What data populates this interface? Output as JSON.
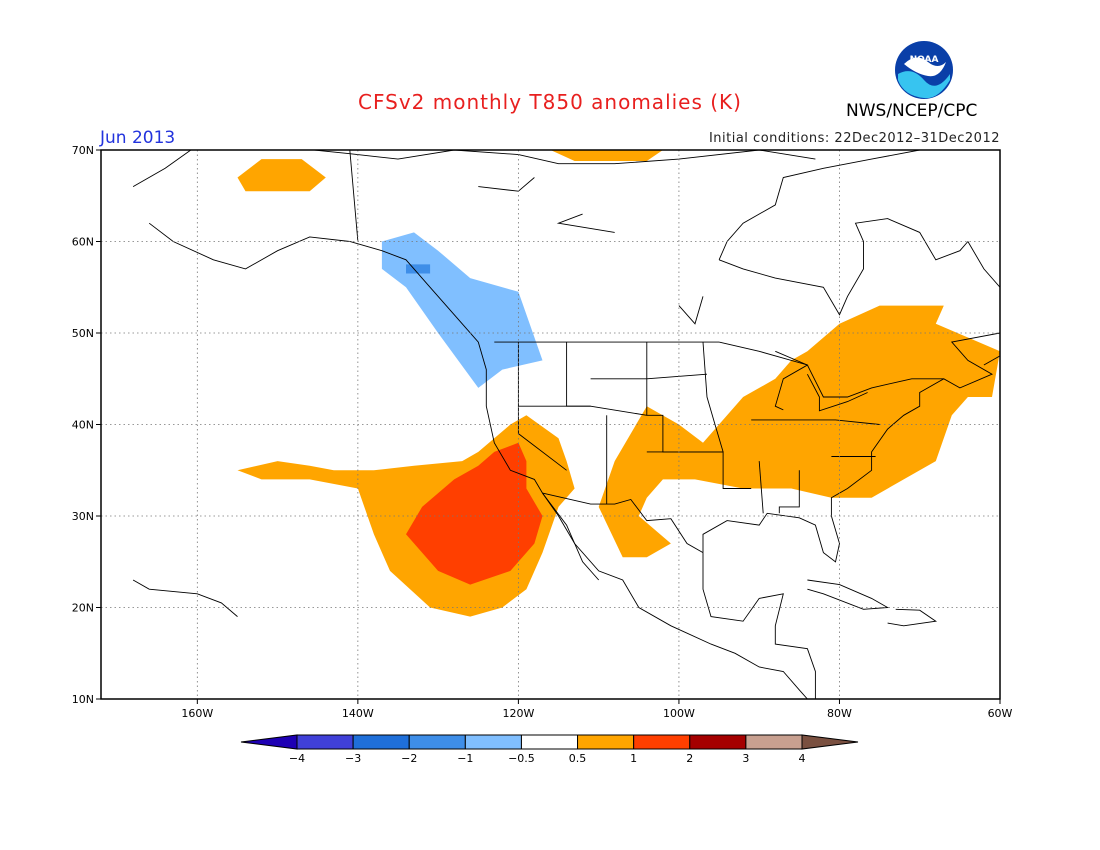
{
  "title": "CFSv2 monthly T850 anomalies (K)",
  "month": "Jun 2013",
  "initial_conditions": "Initial conditions: 22Dec2012–31Dec2012",
  "organization": "NWS/NCEP/CPC",
  "logo_text": "NOAA",
  "map": {
    "lon_range": [
      -172,
      -60
    ],
    "lat_range": [
      10,
      70
    ],
    "lon_ticks": [
      {
        "value": -160,
        "label": "160W"
      },
      {
        "value": -140,
        "label": "140W"
      },
      {
        "value": -120,
        "label": "120W"
      },
      {
        "value": -100,
        "label": "100W"
      },
      {
        "value": -80,
        "label": "80W"
      },
      {
        "value": -60,
        "label": "60W"
      }
    ],
    "lat_ticks": [
      {
        "value": 10,
        "label": "10N"
      },
      {
        "value": 20,
        "label": "20N"
      },
      {
        "value": 30,
        "label": "30N"
      },
      {
        "value": 40,
        "label": "40N"
      },
      {
        "value": 50,
        "label": "50N"
      },
      {
        "value": 60,
        "label": "60N"
      },
      {
        "value": 70,
        "label": "70N"
      }
    ],
    "grid": true,
    "regions": [
      {
        "name": "alaska-north-warm",
        "color": "#ffa500",
        "points": [
          [
            -155,
            67
          ],
          [
            -152,
            69
          ],
          [
            -147,
            69
          ],
          [
            -144,
            67
          ],
          [
            -146,
            65.5
          ],
          [
            -154,
            65.5
          ]
        ]
      },
      {
        "name": "arctic-ocean-warm",
        "color": "#ffa500",
        "points": [
          [
            -116,
            70
          ],
          [
            -102,
            70
          ],
          [
            -104,
            68.8
          ],
          [
            -113,
            68.8
          ]
        ]
      },
      {
        "name": "pacific-northwest-cool",
        "color": "#80bfff",
        "points": [
          [
            -137,
            60
          ],
          [
            -133,
            61
          ],
          [
            -130,
            59
          ],
          [
            -126,
            56
          ],
          [
            -120,
            54.5
          ],
          [
            -117,
            47
          ],
          [
            -122,
            46
          ],
          [
            -125,
            44
          ],
          [
            -130,
            50
          ],
          [
            -134,
            55
          ],
          [
            -137,
            57
          ]
        ]
      },
      {
        "name": "pacific-northwest-cool-core",
        "color": "#3e8ee8",
        "points": [
          [
            -134,
            57.5
          ],
          [
            -131,
            57.5
          ],
          [
            -131,
            56.5
          ],
          [
            -134,
            56.5
          ]
        ]
      },
      {
        "name": "eastern-us-warm",
        "color": "#ffa500",
        "points": [
          [
            -80,
            51
          ],
          [
            -75,
            53
          ],
          [
            -67,
            53
          ],
          [
            -68,
            51
          ],
          [
            -60,
            48
          ],
          [
            -61,
            43
          ],
          [
            -64,
            43
          ],
          [
            -66,
            41
          ],
          [
            -68,
            36
          ],
          [
            -72,
            34
          ],
          [
            -76,
            32
          ],
          [
            -81,
            32
          ],
          [
            -86,
            33
          ],
          [
            -92,
            33
          ],
          [
            -98,
            34
          ],
          [
            -102,
            34
          ],
          [
            -104,
            32
          ],
          [
            -105,
            30
          ],
          [
            -101,
            27
          ],
          [
            -104,
            25.5
          ],
          [
            -107,
            25.5
          ],
          [
            -110,
            31
          ],
          [
            -108,
            36
          ],
          [
            -106,
            39
          ],
          [
            -104,
            42
          ],
          [
            -100,
            40
          ],
          [
            -97,
            38
          ],
          [
            -94,
            41
          ],
          [
            -92,
            43
          ],
          [
            -88,
            45
          ],
          [
            -86,
            47
          ],
          [
            -84,
            48
          ],
          [
            -80,
            51
          ]
        ]
      },
      {
        "name": "pacific-southwest-warm",
        "color": "#ffa500",
        "points": [
          [
            -155,
            35
          ],
          [
            -150,
            36
          ],
          [
            -146,
            35.5
          ],
          [
            -143,
            35
          ],
          [
            -138,
            35
          ],
          [
            -133,
            35.5
          ],
          [
            -127,
            36
          ],
          [
            -125,
            37
          ],
          [
            -121,
            40
          ],
          [
            -119,
            41
          ],
          [
            -115,
            38.5
          ],
          [
            -114,
            36
          ],
          [
            -113,
            33
          ],
          [
            -115,
            31
          ],
          [
            -117,
            26
          ],
          [
            -119,
            22
          ],
          [
            -122,
            20
          ],
          [
            -126,
            19
          ],
          [
            -131,
            20
          ],
          [
            -136,
            24
          ],
          [
            -138,
            28
          ],
          [
            -140,
            33
          ],
          [
            -146,
            34
          ],
          [
            -152,
            34
          ]
        ]
      },
      {
        "name": "pacific-southwest-hot",
        "color": "#ff3f00",
        "points": [
          [
            -123,
            37
          ],
          [
            -120,
            38
          ],
          [
            -119,
            36
          ],
          [
            -119,
            33
          ],
          [
            -117,
            30
          ],
          [
            -118,
            27
          ],
          [
            -121,
            24
          ],
          [
            -126,
            22.5
          ],
          [
            -130,
            24
          ],
          [
            -134,
            28
          ],
          [
            -132,
            31
          ],
          [
            -128,
            34
          ],
          [
            -125,
            35.5
          ]
        ]
      }
    ]
  },
  "colorbar": {
    "labels": [
      "−4",
      "−3",
      "−2",
      "−1",
      "−0.5",
      "0.5",
      "1",
      "2",
      "3",
      "4"
    ],
    "colors": [
      "#1e00b4",
      "#4040d8",
      "#1f6fd9",
      "#3e8ee8",
      "#80bfff",
      "#ffffff",
      "#ffa500",
      "#ff3f00",
      "#a50000",
      "#c8a090",
      "#7a5040"
    ]
  }
}
